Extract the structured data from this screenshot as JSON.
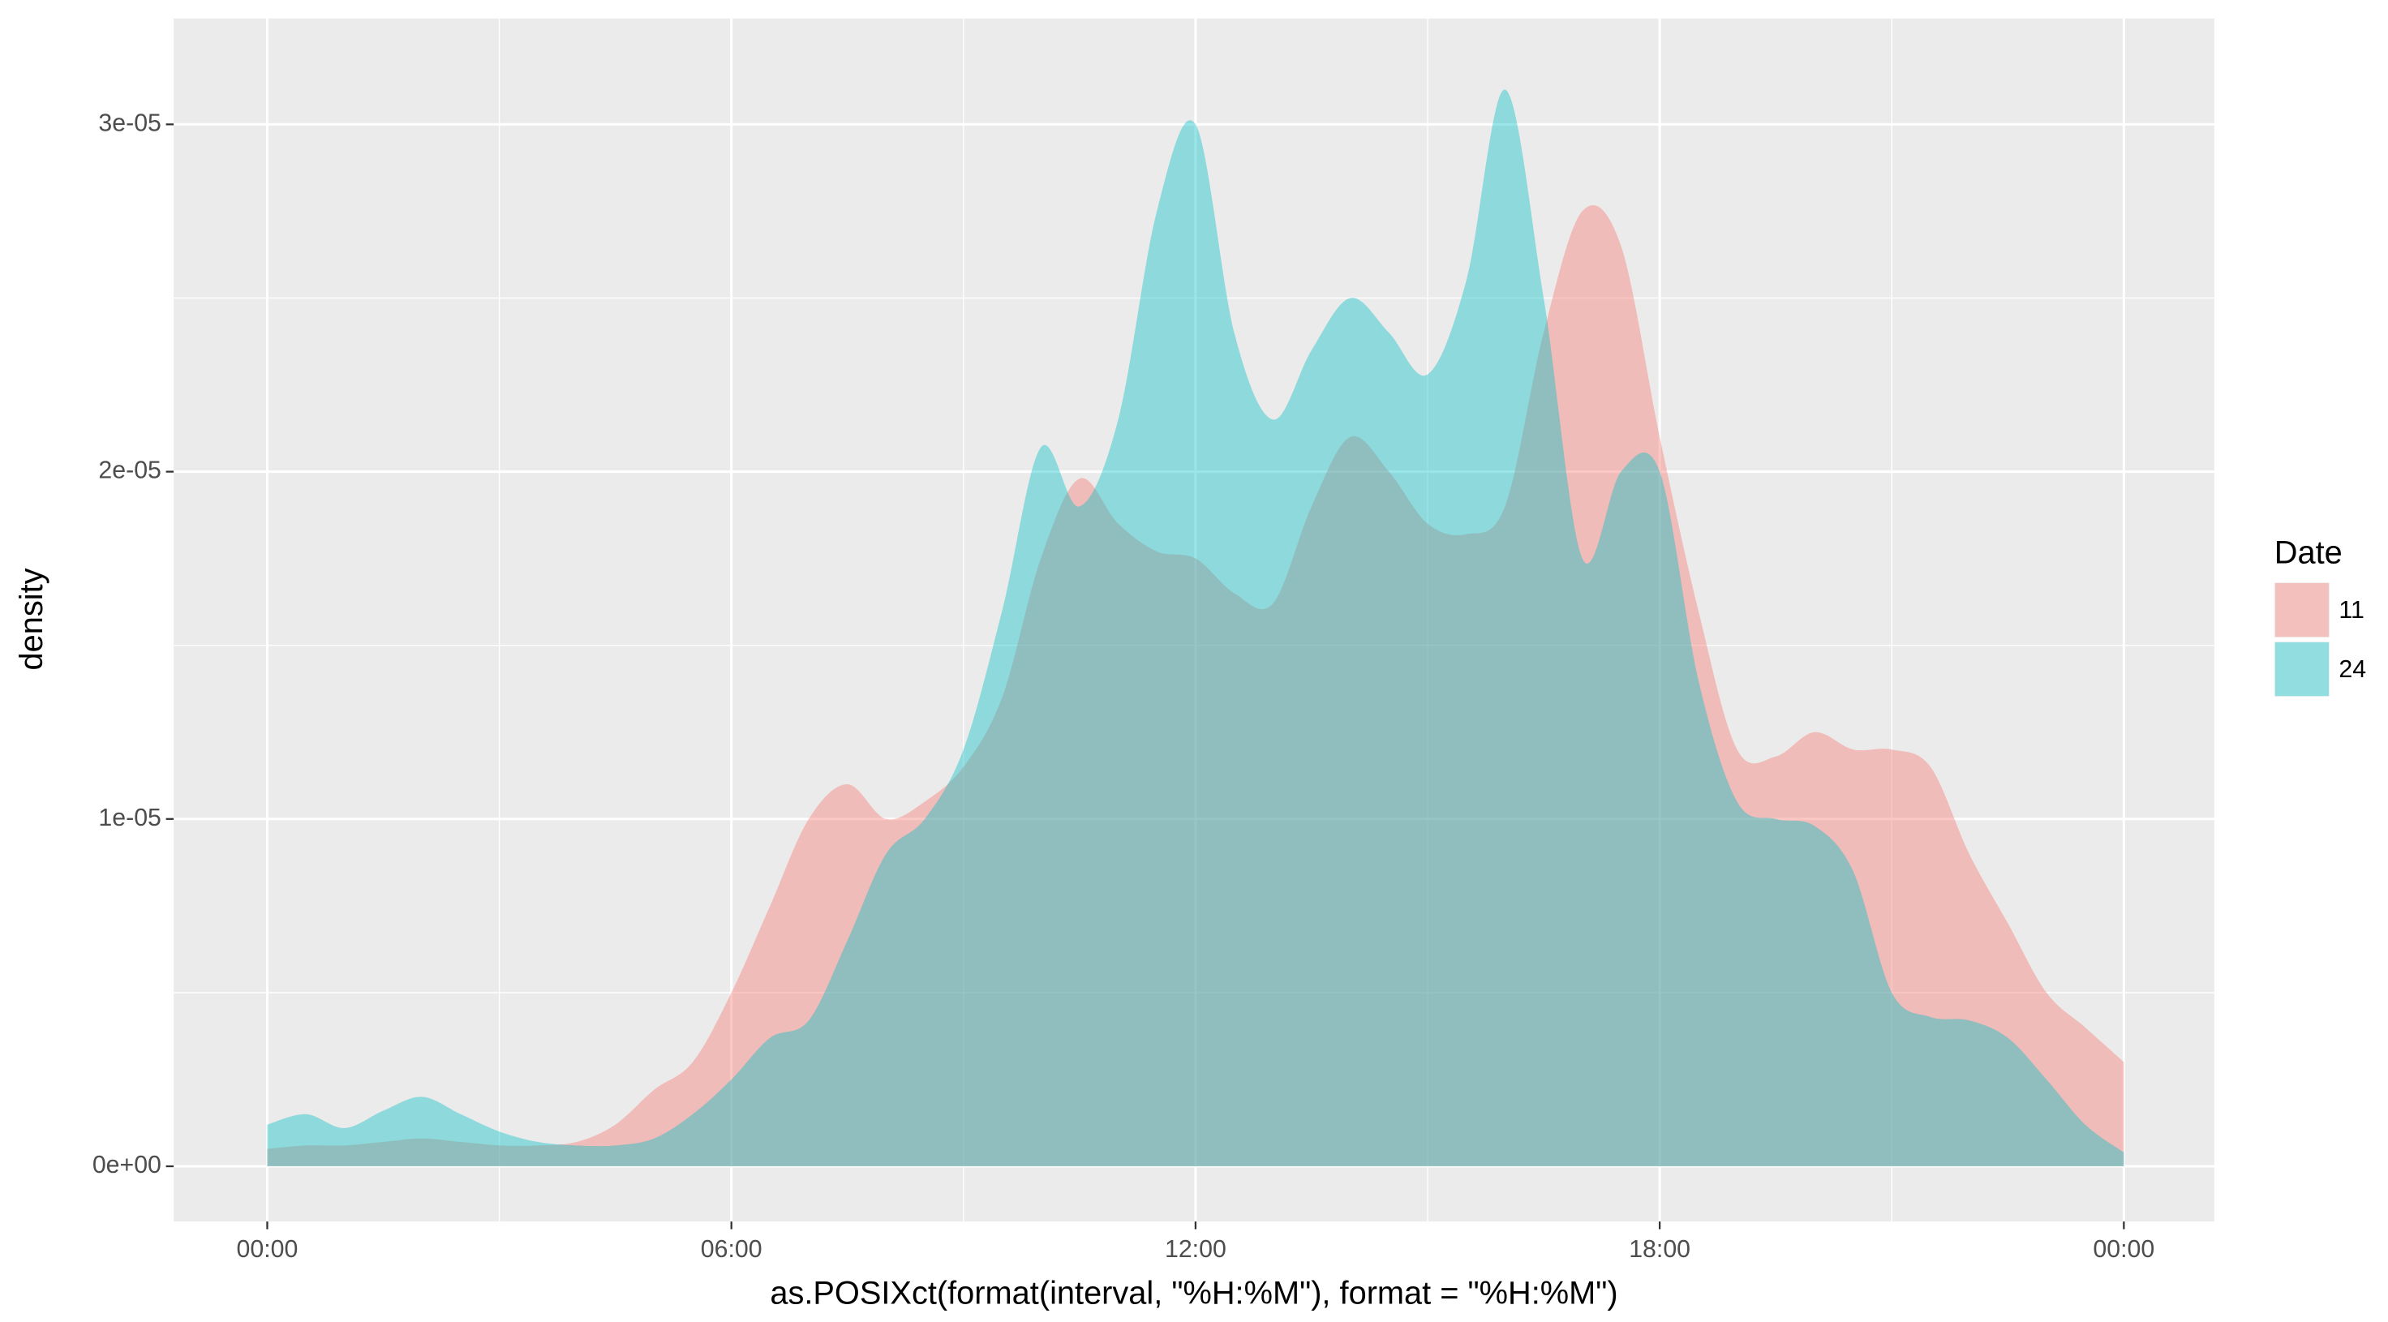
{
  "chart_data": {
    "type": "area",
    "x_label": "as.POSIXct(format(interval, \"%H:%M\"), format = \"%H:%M\")",
    "y_label": "density",
    "legend_title": "Date",
    "legend_position": "right",
    "grid": true,
    "x": [
      0,
      0.5,
      1,
      1.5,
      2,
      2.5,
      3,
      3.5,
      4,
      4.5,
      5,
      5.5,
      6,
      6.5,
      7,
      7.5,
      8,
      8.5,
      9,
      9.5,
      10,
      10.5,
      11,
      11.5,
      12,
      12.5,
      13,
      13.5,
      14,
      14.5,
      15,
      15.5,
      16,
      16.5,
      17,
      17.5,
      18,
      18.5,
      19,
      19.5,
      20,
      20.5,
      21,
      21.5,
      22,
      22.5,
      23,
      23.5,
      24
    ],
    "xlim": [
      -1.21,
      25.17
    ],
    "xticks": [
      {
        "value": 0,
        "label": "00:00"
      },
      {
        "value": 6,
        "label": "06:00"
      },
      {
        "value": 12,
        "label": "12:00"
      },
      {
        "value": 18,
        "label": "18:00"
      },
      {
        "value": 24,
        "label": "00:00"
      }
    ],
    "ylim": [
      -1.59e-06,
      3.305e-05
    ],
    "yticks": [
      {
        "value": 0,
        "label": "0e+00"
      },
      {
        "value": 1e-05,
        "label": "1e-05"
      },
      {
        "value": 2e-05,
        "label": "2e-05"
      },
      {
        "value": 3e-05,
        "label": "3e-05"
      }
    ],
    "series": [
      {
        "name": "11",
        "color": "#F8766D",
        "values": [
          5e-07,
          6e-07,
          6e-07,
          7e-07,
          8e-07,
          7e-07,
          6e-07,
          6e-07,
          7e-07,
          1.2e-06,
          2.2e-06,
          3e-06,
          5e-06,
          7.5e-06,
          1e-05,
          1.1e-05,
          1e-05,
          1.05e-05,
          1.15e-05,
          1.35e-05,
          1.75e-05,
          1.98e-05,
          1.85e-05,
          1.77e-05,
          1.75e-05,
          1.65e-05,
          1.62e-05,
          1.9e-05,
          2.1e-05,
          2e-05,
          1.85e-05,
          1.82e-05,
          1.9e-05,
          2.4e-05,
          2.75e-05,
          2.65e-05,
          2.1e-05,
          1.6e-05,
          1.2e-05,
          1.18e-05,
          1.25e-05,
          1.2e-05,
          1.2e-05,
          1.15e-05,
          9e-06,
          7e-06,
          5e-06,
          4e-06,
          3e-06
        ]
      },
      {
        "name": "24",
        "color": "#00BFC4",
        "values": [
          1.2e-06,
          1.5e-06,
          1.1e-06,
          1.6e-06,
          2e-06,
          1.5e-06,
          1e-06,
          7e-07,
          6e-07,
          6e-07,
          8e-07,
          1.5e-06,
          2.5e-06,
          3.7e-06,
          4.2e-06,
          6.5e-06,
          9e-06,
          1e-05,
          1.2e-05,
          1.6e-05,
          2.07e-05,
          1.9e-05,
          2.15e-05,
          2.75e-05,
          3e-05,
          2.4e-05,
          2.15e-05,
          2.35e-05,
          2.5e-05,
          2.4e-05,
          2.28e-05,
          2.55e-05,
          3.1e-05,
          2.5e-05,
          1.75e-05,
          2e-05,
          2e-05,
          1.4e-05,
          1.05e-05,
          1e-05,
          9.8e-06,
          8.5e-06,
          5e-06,
          4.3e-06,
          4.2e-06,
          3.7e-06,
          2.5e-06,
          1.2e-06,
          4e-07
        ]
      }
    ]
  }
}
